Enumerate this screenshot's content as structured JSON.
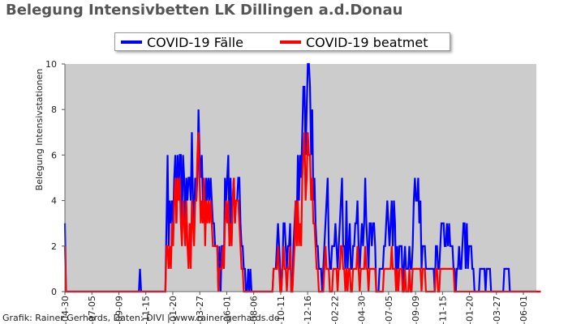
{
  "title": "Belegung Intensivbetten LK Dillingen a.d.Donau",
  "credit": "Grafik: Rainer Gerhards, Daten: DIVI | www.rainer-gerhards.de",
  "chart_data": {
    "type": "line",
    "title": "Belegung Intensivbetten LK Dillingen a.d.Donau",
    "ylabel": "Belegung Intensivstationen",
    "xlabel": "",
    "ylim": [
      0,
      10
    ],
    "yticks": [
      0,
      2,
      4,
      6,
      8,
      10
    ],
    "grid": false,
    "legend": "top-center",
    "xticks": [
      "04-30",
      "07-05",
      "09-09",
      "11-15",
      "01-20",
      "03-27",
      "06-01",
      "08-06",
      "10-11",
      "12-16",
      "02-22",
      "04-30",
      "07-05",
      "09-09",
      "11-15",
      "01-20",
      "03-27",
      "06-01"
    ],
    "series": [
      {
        "name": "COVID-19 Fälle",
        "color": "#0000ff",
        "values": [
          3,
          0,
          0,
          0,
          0,
          0,
          0,
          0,
          0,
          0,
          0,
          0,
          0,
          0,
          0,
          0,
          0,
          0,
          0,
          0,
          0,
          0,
          0,
          0,
          0,
          0,
          0,
          0,
          0,
          0,
          0,
          0,
          0,
          0,
          0,
          0,
          0,
          0,
          0,
          0,
          0,
          0,
          0,
          0,
          0,
          0,
          0,
          0,
          0,
          0,
          0,
          0,
          0,
          0,
          0,
          0,
          0,
          0,
          0,
          0,
          0,
          0,
          0,
          0,
          0,
          0,
          0,
          0,
          1,
          0,
          0,
          0,
          0,
          0,
          0,
          0,
          0,
          0,
          0,
          0,
          0,
          0,
          0,
          0,
          0,
          0,
          0,
          0,
          0,
          0,
          0,
          0,
          3,
          6,
          2,
          4,
          3,
          4,
          3,
          5,
          6,
          3,
          6,
          4,
          6,
          6,
          3,
          6,
          5,
          3,
          5,
          4,
          5,
          5,
          4,
          7,
          4,
          3,
          5,
          4,
          5,
          8,
          6,
          5,
          6,
          4,
          5,
          3,
          5,
          4,
          5,
          4,
          5,
          4,
          3,
          3,
          2,
          2,
          2,
          0,
          2,
          0,
          2,
          2,
          1,
          5,
          4,
          5,
          6,
          2,
          5,
          3,
          4,
          5,
          3,
          4,
          4,
          5,
          5,
          3,
          2,
          2,
          1,
          1,
          0,
          0,
          1,
          0,
          1,
          0,
          0,
          0,
          0,
          0,
          0,
          0,
          0,
          0,
          0,
          0,
          0,
          0,
          0,
          0,
          0,
          0,
          0,
          0,
          0,
          1,
          1,
          1,
          2,
          3,
          2,
          1,
          0,
          1,
          3,
          3,
          2,
          1,
          2,
          2,
          3,
          0,
          0,
          2,
          3,
          4,
          3,
          6,
          4,
          6,
          5,
          7,
          9,
          9,
          6,
          8,
          10,
          10,
          9,
          6,
          8,
          4,
          5,
          3,
          2,
          2,
          1,
          1,
          1,
          0,
          1,
          2,
          3,
          4,
          5,
          2,
          1,
          1,
          2,
          2,
          2,
          3,
          2,
          1,
          2,
          3,
          4,
          5,
          2,
          2,
          1,
          4,
          1,
          2,
          3,
          1,
          1,
          2,
          2,
          3,
          3,
          4,
          2,
          1,
          2,
          3,
          2,
          3,
          5,
          3,
          2,
          1,
          3,
          3,
          2,
          3,
          3,
          2,
          0,
          0,
          0,
          1,
          1,
          1,
          1,
          2,
          2,
          3,
          4,
          3,
          2,
          3,
          4,
          2,
          4,
          3,
          0,
          2,
          1,
          2,
          2,
          2,
          0,
          1,
          2,
          1,
          1,
          1,
          2,
          1,
          1,
          2,
          4,
          5,
          4,
          4,
          5,
          3,
          4,
          1,
          2,
          2,
          2,
          1,
          1,
          1,
          1,
          1,
          1,
          1,
          1,
          0,
          2,
          2,
          1,
          1,
          2,
          3,
          3,
          3,
          2,
          2,
          3,
          2,
          3,
          2,
          2,
          2,
          1,
          1,
          0,
          1,
          1,
          2,
          1,
          1,
          2,
          3,
          3,
          1,
          3,
          1,
          2,
          2,
          2,
          1,
          1,
          0,
          0,
          0,
          0,
          0,
          1,
          1,
          1,
          1,
          1,
          0,
          1,
          1,
          1,
          1,
          0,
          0,
          0,
          0,
          0,
          0,
          0,
          0,
          0,
          0,
          0,
          0,
          1,
          1,
          1,
          1,
          1,
          0,
          0,
          0,
          0,
          0,
          0,
          0,
          0,
          0,
          0,
          0,
          0,
          0,
          0,
          0,
          0,
          0,
          0,
          0,
          0,
          0,
          0,
          0,
          0,
          0
        ]
      },
      {
        "name": "COVID-19 beatmet",
        "color": "#ff0000",
        "values": [
          2,
          0,
          0,
          0,
          0,
          0,
          0,
          0,
          0,
          0,
          0,
          0,
          0,
          0,
          0,
          0,
          0,
          0,
          0,
          0,
          0,
          0,
          0,
          0,
          0,
          0,
          0,
          0,
          0,
          0,
          0,
          0,
          0,
          0,
          0,
          0,
          0,
          0,
          0,
          0,
          0,
          0,
          0,
          0,
          0,
          0,
          0,
          0,
          0,
          0,
          0,
          0,
          0,
          0,
          0,
          0,
          0,
          0,
          0,
          0,
          0,
          0,
          0,
          0,
          0,
          0,
          0,
          0,
          0,
          0,
          0,
          0,
          0,
          0,
          0,
          0,
          0,
          0,
          0,
          0,
          0,
          0,
          0,
          0,
          0,
          0,
          0,
          0,
          0,
          0,
          0,
          0,
          2,
          2,
          1,
          2,
          1,
          3,
          2,
          4,
          5,
          3,
          5,
          4,
          5,
          3,
          2,
          4,
          3,
          2,
          4,
          2,
          1,
          3,
          1,
          4,
          3,
          2,
          4,
          4,
          6,
          7,
          5,
          3,
          4,
          3,
          5,
          2,
          4,
          3,
          4,
          3,
          4,
          3,
          2,
          2,
          2,
          2,
          2,
          0,
          1,
          1,
          1,
          2,
          1,
          3,
          4,
          3,
          4,
          2,
          3,
          2,
          4,
          5,
          3,
          4,
          4,
          4,
          3,
          2,
          1,
          1,
          0,
          0,
          0,
          0,
          0,
          0,
          0,
          0,
          0,
          0,
          0,
          0,
          0,
          0,
          0,
          0,
          0,
          0,
          0,
          0,
          0,
          0,
          0,
          0,
          0,
          0,
          0,
          1,
          1,
          1,
          1,
          2,
          1,
          0,
          0,
          1,
          2,
          1,
          1,
          0,
          1,
          1,
          2,
          0,
          0,
          1,
          2,
          4,
          2,
          4,
          2,
          3,
          2,
          5,
          6,
          7,
          4,
          5,
          7,
          6,
          6,
          4,
          5,
          3,
          3,
          2,
          1,
          1,
          0,
          0,
          0,
          0,
          0,
          1,
          2,
          1,
          1,
          1,
          0,
          0,
          0,
          1,
          1,
          1,
          1,
          0,
          1,
          1,
          2,
          2,
          1,
          1,
          0,
          1,
          0,
          1,
          1,
          0,
          0,
          1,
          1,
          1,
          1,
          2,
          1,
          0,
          1,
          1,
          1,
          1,
          2,
          1,
          1,
          0,
          1,
          1,
          1,
          1,
          1,
          1,
          0,
          0,
          0,
          0,
          0,
          0,
          0,
          1,
          1,
          1,
          1,
          1,
          1,
          1,
          2,
          1,
          1,
          1,
          0,
          1,
          0,
          1,
          1,
          1,
          0,
          0,
          1,
          0,
          0,
          0,
          1,
          0,
          0,
          1,
          1,
          1,
          1,
          1,
          1,
          1,
          1,
          0,
          1,
          1,
          1,
          0,
          0,
          0,
          0,
          0,
          0,
          0,
          0,
          0,
          1,
          1,
          0,
          0,
          1,
          1,
          1,
          1,
          1,
          1,
          1,
          1,
          1,
          1,
          1,
          1,
          1,
          0,
          0,
          0,
          0,
          0,
          0,
          0,
          0,
          0,
          0,
          0,
          0,
          0,
          0,
          0,
          0,
          0,
          0,
          0,
          0,
          0,
          0,
          0,
          0,
          0,
          0,
          0,
          0,
          0,
          0,
          0,
          0,
          0,
          0,
          0,
          0,
          0,
          0,
          0,
          0,
          0,
          0,
          0,
          0,
          0,
          0,
          0,
          0,
          0,
          0,
          0,
          0,
          0,
          0,
          0,
          0,
          0,
          0,
          0,
          0,
          0,
          0,
          0,
          0,
          0,
          0,
          0,
          0,
          0,
          0,
          0,
          0,
          0,
          0,
          0,
          0,
          0,
          0,
          0
        ]
      }
    ]
  }
}
